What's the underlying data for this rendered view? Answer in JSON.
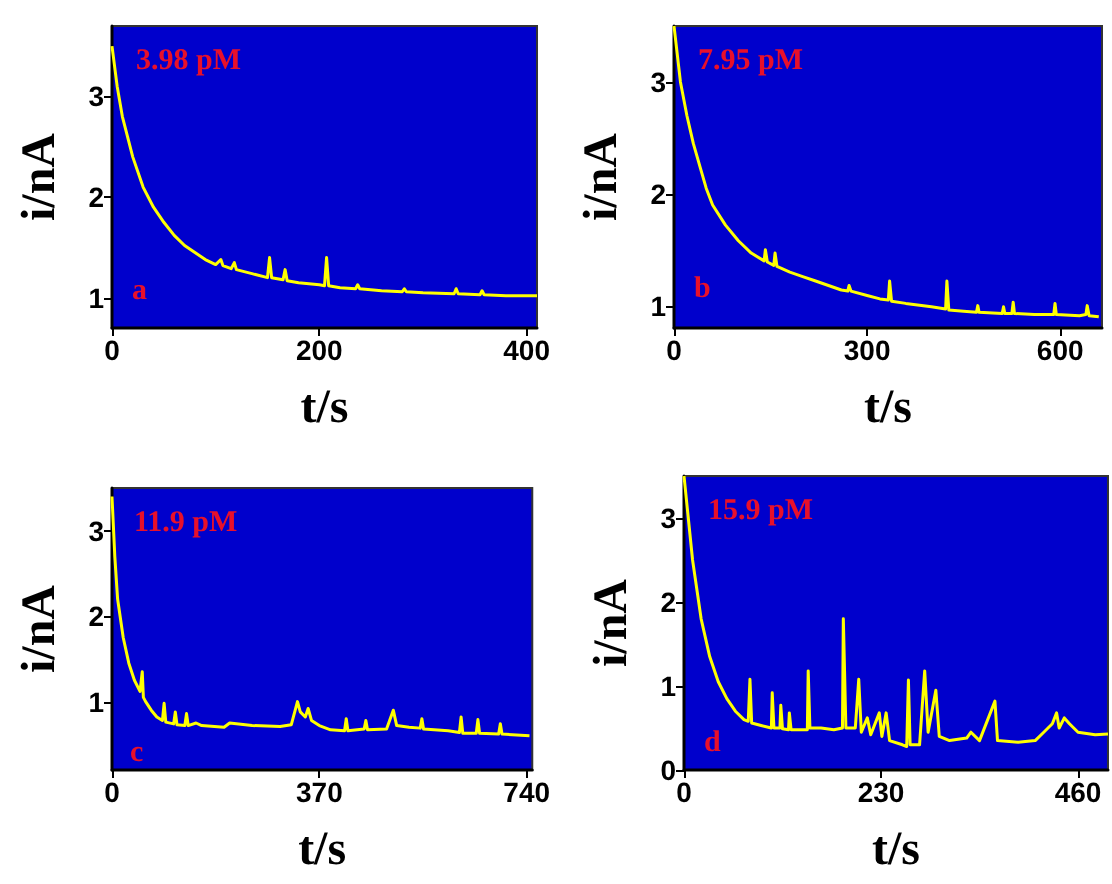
{
  "chart_data": [
    {
      "type": "line",
      "xlabel": "t/s",
      "ylabel": "i/nA",
      "annotations": [
        "3.98 pM",
        "a"
      ],
      "xlim": [
        0,
        410
      ],
      "ylim": [
        0.7,
        3.7
      ],
      "xticks": [
        0,
        200,
        400
      ],
      "yticks": [
        1,
        2,
        3
      ],
      "grid": false,
      "marker": "none",
      "line_style": "solid",
      "series": [
        {
          "color": "#ffff00",
          "x": [
            0,
            5,
            10,
            20,
            30,
            40,
            50,
            60,
            70,
            80,
            90,
            100,
            105,
            107,
            115,
            118,
            120,
            135,
            150,
            152,
            154,
            165,
            167,
            169,
            180,
            200,
            205,
            207,
            209,
            220,
            235,
            237,
            239,
            260,
            280,
            282,
            284,
            300,
            330,
            332,
            334,
            355,
            357,
            359,
            380,
            410
          ],
          "values": [
            3.5,
            3.1,
            2.8,
            2.4,
            2.1,
            1.9,
            1.75,
            1.62,
            1.52,
            1.45,
            1.38,
            1.33,
            1.38,
            1.32,
            1.29,
            1.35,
            1.28,
            1.24,
            1.2,
            1.4,
            1.2,
            1.18,
            1.28,
            1.17,
            1.15,
            1.13,
            1.12,
            1.4,
            1.12,
            1.1,
            1.09,
            1.13,
            1.09,
            1.07,
            1.06,
            1.09,
            1.06,
            1.05,
            1.04,
            1.09,
            1.04,
            1.03,
            1.07,
            1.03,
            1.02,
            1.02
          ]
        }
      ]
    },
    {
      "type": "line",
      "xlabel": "t/s",
      "ylabel": "i/nA",
      "annotations": [
        "7.95 pM",
        "b"
      ],
      "xlim": [
        0,
        665
      ],
      "ylim": [
        0.8,
        3.5
      ],
      "xticks": [
        0,
        300,
        600
      ],
      "yticks": [
        1,
        2,
        3
      ],
      "grid": false,
      "marker": "none",
      "line_style": "solid",
      "series": [
        {
          "color": "#ffff00",
          "x": [
            0,
            10,
            20,
            30,
            40,
            50,
            60,
            80,
            100,
            120,
            140,
            142,
            145,
            155,
            157,
            160,
            180,
            200,
            220,
            240,
            260,
            270,
            272,
            275,
            300,
            320,
            333,
            335,
            338,
            360,
            400,
            422,
            424,
            427,
            450,
            470,
            472,
            474,
            510,
            512,
            514,
            525,
            527,
            529,
            560,
            590,
            592,
            594,
            630,
            640,
            642,
            645,
            660
          ],
          "values": [
            3.5,
            3.0,
            2.7,
            2.45,
            2.25,
            2.05,
            1.9,
            1.72,
            1.58,
            1.47,
            1.4,
            1.5,
            1.39,
            1.36,
            1.47,
            1.35,
            1.3,
            1.26,
            1.22,
            1.18,
            1.14,
            1.13,
            1.18,
            1.13,
            1.09,
            1.06,
            1.05,
            1.22,
            1.04,
            1.02,
            0.99,
            0.97,
            1.22,
            0.96,
            0.95,
            0.94,
            1.0,
            0.94,
            0.93,
            0.99,
            0.93,
            0.93,
            1.03,
            0.93,
            0.92,
            0.92,
            1.02,
            0.92,
            0.91,
            0.92,
            1.0,
            0.91,
            0.9
          ]
        }
      ]
    },
    {
      "type": "line",
      "xlabel": "t/s",
      "ylabel": "i/nA",
      "annotations": [
        "11.9 pM",
        "c"
      ],
      "xlim": [
        0,
        750
      ],
      "ylim": [
        0.2,
        3.5
      ],
      "xticks": [
        0,
        370,
        740
      ],
      "yticks": [
        1,
        2,
        3
      ],
      "grid": false,
      "marker": "none",
      "line_style": "solid",
      "series": [
        {
          "color": "#ffff00",
          "x": [
            0,
            5,
            10,
            20,
            30,
            40,
            50,
            54,
            56,
            60,
            70,
            80,
            90,
            93,
            96,
            110,
            113,
            116,
            130,
            133,
            136,
            150,
            160,
            200,
            210,
            250,
            300,
            320,
            331,
            336,
            345,
            350,
            356,
            370,
            390,
            415,
            418,
            421,
            450,
            453,
            456,
            490,
            502,
            508,
            530,
            550,
            553,
            556,
            600,
            620,
            623,
            626,
            650,
            653,
            656,
            690,
            693,
            696,
            745
          ],
          "values": [
            3.4,
            2.7,
            2.2,
            1.75,
            1.45,
            1.25,
            1.12,
            1.35,
            1.05,
            1.0,
            0.9,
            0.82,
            0.78,
            0.98,
            0.76,
            0.74,
            0.88,
            0.73,
            0.72,
            0.86,
            0.72,
            0.75,
            0.72,
            0.7,
            0.75,
            0.72,
            0.71,
            0.73,
            1.0,
            0.88,
            0.82,
            0.92,
            0.78,
            0.72,
            0.67,
            0.66,
            0.8,
            0.66,
            0.68,
            0.78,
            0.67,
            0.68,
            0.9,
            0.72,
            0.7,
            0.69,
            0.8,
            0.68,
            0.66,
            0.64,
            0.82,
            0.63,
            0.63,
            0.79,
            0.63,
            0.62,
            0.74,
            0.62,
            0.6
          ]
        }
      ]
    },
    {
      "type": "line",
      "xlabel": "t/s",
      "ylabel": "i/nA",
      "annotations": [
        "15.9 pM",
        "d"
      ],
      "xlim": [
        0,
        495
      ],
      "ylim": [
        0,
        3.5
      ],
      "xticks": [
        0,
        230,
        460
      ],
      "yticks": [
        0,
        1,
        2,
        3
      ],
      "grid": false,
      "marker": "none",
      "line_style": "solid",
      "series": [
        {
          "color": "#ffff00",
          "x": [
            0,
            5,
            10,
            20,
            30,
            40,
            50,
            60,
            70,
            75,
            77,
            79,
            90,
            102,
            103,
            105,
            112,
            113,
            115,
            122,
            123,
            125,
            144,
            145,
            147,
            160,
            175,
            185,
            186,
            189,
            200,
            204,
            207,
            214,
            218,
            228,
            231,
            236,
            240,
            255,
            260,
            262,
            264,
            275,
            281,
            285,
            294,
            298,
            310,
            330,
            335,
            345,
            363,
            366,
            390,
            410,
            420,
            430,
            435,
            438,
            444,
            450,
            460,
            480,
            495
          ],
          "values": [
            3.5,
            3.0,
            2.5,
            1.8,
            1.35,
            1.05,
            0.85,
            0.7,
            0.6,
            0.58,
            1.08,
            0.56,
            0.53,
            0.5,
            0.92,
            0.5,
            0.5,
            0.77,
            0.49,
            0.48,
            0.68,
            0.48,
            0.48,
            1.18,
            0.5,
            0.5,
            0.48,
            0.5,
            1.8,
            0.5,
            0.5,
            1.08,
            0.45,
            0.62,
            0.42,
            0.68,
            0.4,
            0.68,
            0.35,
            0.3,
            0.28,
            1.07,
            0.3,
            0.3,
            1.18,
            0.45,
            0.95,
            0.4,
            0.35,
            0.38,
            0.45,
            0.35,
            0.82,
            0.35,
            0.33,
            0.35,
            0.45,
            0.55,
            0.68,
            0.5,
            0.62,
            0.55,
            0.45,
            0.42,
            0.43
          ]
        }
      ]
    }
  ]
}
